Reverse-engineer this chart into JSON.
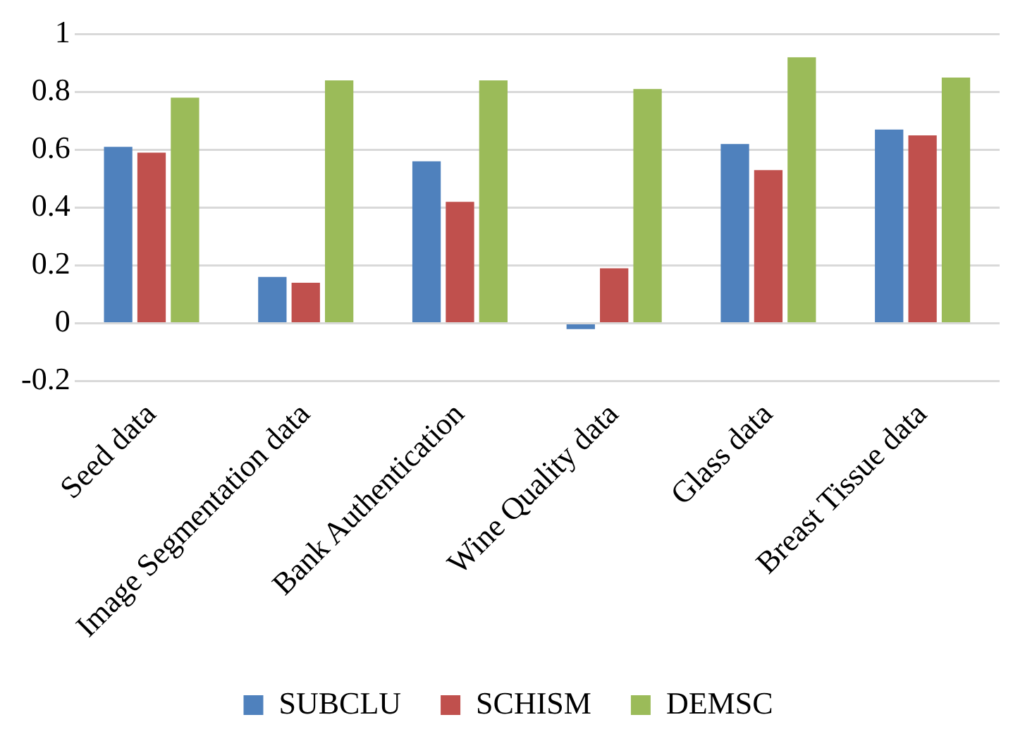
{
  "chart_data": {
    "type": "bar",
    "categories": [
      "Seed data",
      "Image Segmentation data",
      "Bank Authentication",
      "Wine Quality data",
      "Glass data",
      "Breast Tissue data"
    ],
    "series": [
      {
        "name": "SUBCLU",
        "color": "#4f81bd",
        "values": [
          0.61,
          0.16,
          0.56,
          -0.02,
          0.62,
          0.67
        ]
      },
      {
        "name": "SCHISM",
        "color": "#c0504d",
        "values": [
          0.59,
          0.14,
          0.42,
          0.19,
          0.53,
          0.65
        ]
      },
      {
        "name": "DEMSC",
        "color": "#9bbb59",
        "values": [
          0.78,
          0.84,
          0.84,
          0.81,
          0.92,
          0.85
        ]
      }
    ],
    "ylim": [
      -0.2,
      1
    ],
    "yticks": [
      -0.2,
      0,
      0.2,
      0.4,
      0.6,
      0.8,
      1
    ],
    "grid": "y",
    "legend": "bottom"
  }
}
